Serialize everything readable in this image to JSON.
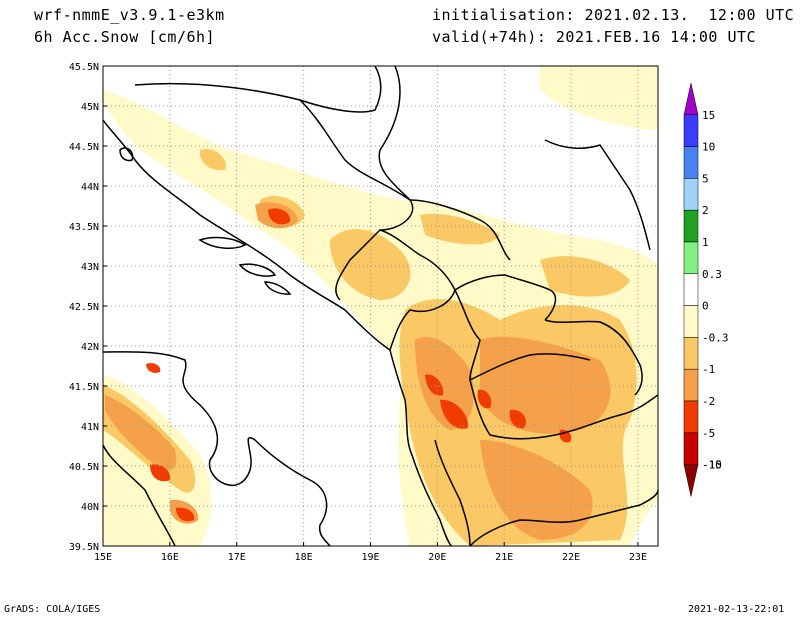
{
  "header": {
    "model": "wrf-nmmE_v3.9.1-e3km",
    "field": "6h Acc.Snow [cm/6h]",
    "init": "initialisation: 2021.02.13.  12:00 UTC",
    "valid": "valid(+74h): 2021.FEB.16 14:00 UTC"
  },
  "map": {
    "lon_labels": [
      "15E",
      "16E",
      "17E",
      "18E",
      "19E",
      "20E",
      "21E",
      "22E",
      "23E"
    ],
    "lat_labels": [
      "39.5N",
      "40N",
      "40.5N",
      "41N",
      "41.5N",
      "42N",
      "42.5N",
      "43N",
      "43.5N",
      "44N",
      "44.5N",
      "45N",
      "45.5N"
    ],
    "lon_range": [
      15,
      23.3
    ],
    "lat_range": [
      39.5,
      45.5
    ],
    "grid": true
  },
  "legend": {
    "labels": [
      "15",
      "10",
      "5",
      "2",
      "1",
      "0.3",
      "0",
      "-0.3",
      "-1",
      "-2",
      "-5",
      "-10",
      "-15"
    ],
    "colors": [
      "#a000c8",
      "#3c3cff",
      "#4682f0",
      "#a0d2fa",
      "#22a022",
      "#82f082",
      "#ffffff",
      "#fffac8",
      "#fac864",
      "#f5a04b",
      "#f03c00",
      "#c80000",
      "#8c0000"
    ]
  },
  "footer": {
    "left": "GrADS: COLA/IGES",
    "right": "2021-02-13-22:01"
  }
}
